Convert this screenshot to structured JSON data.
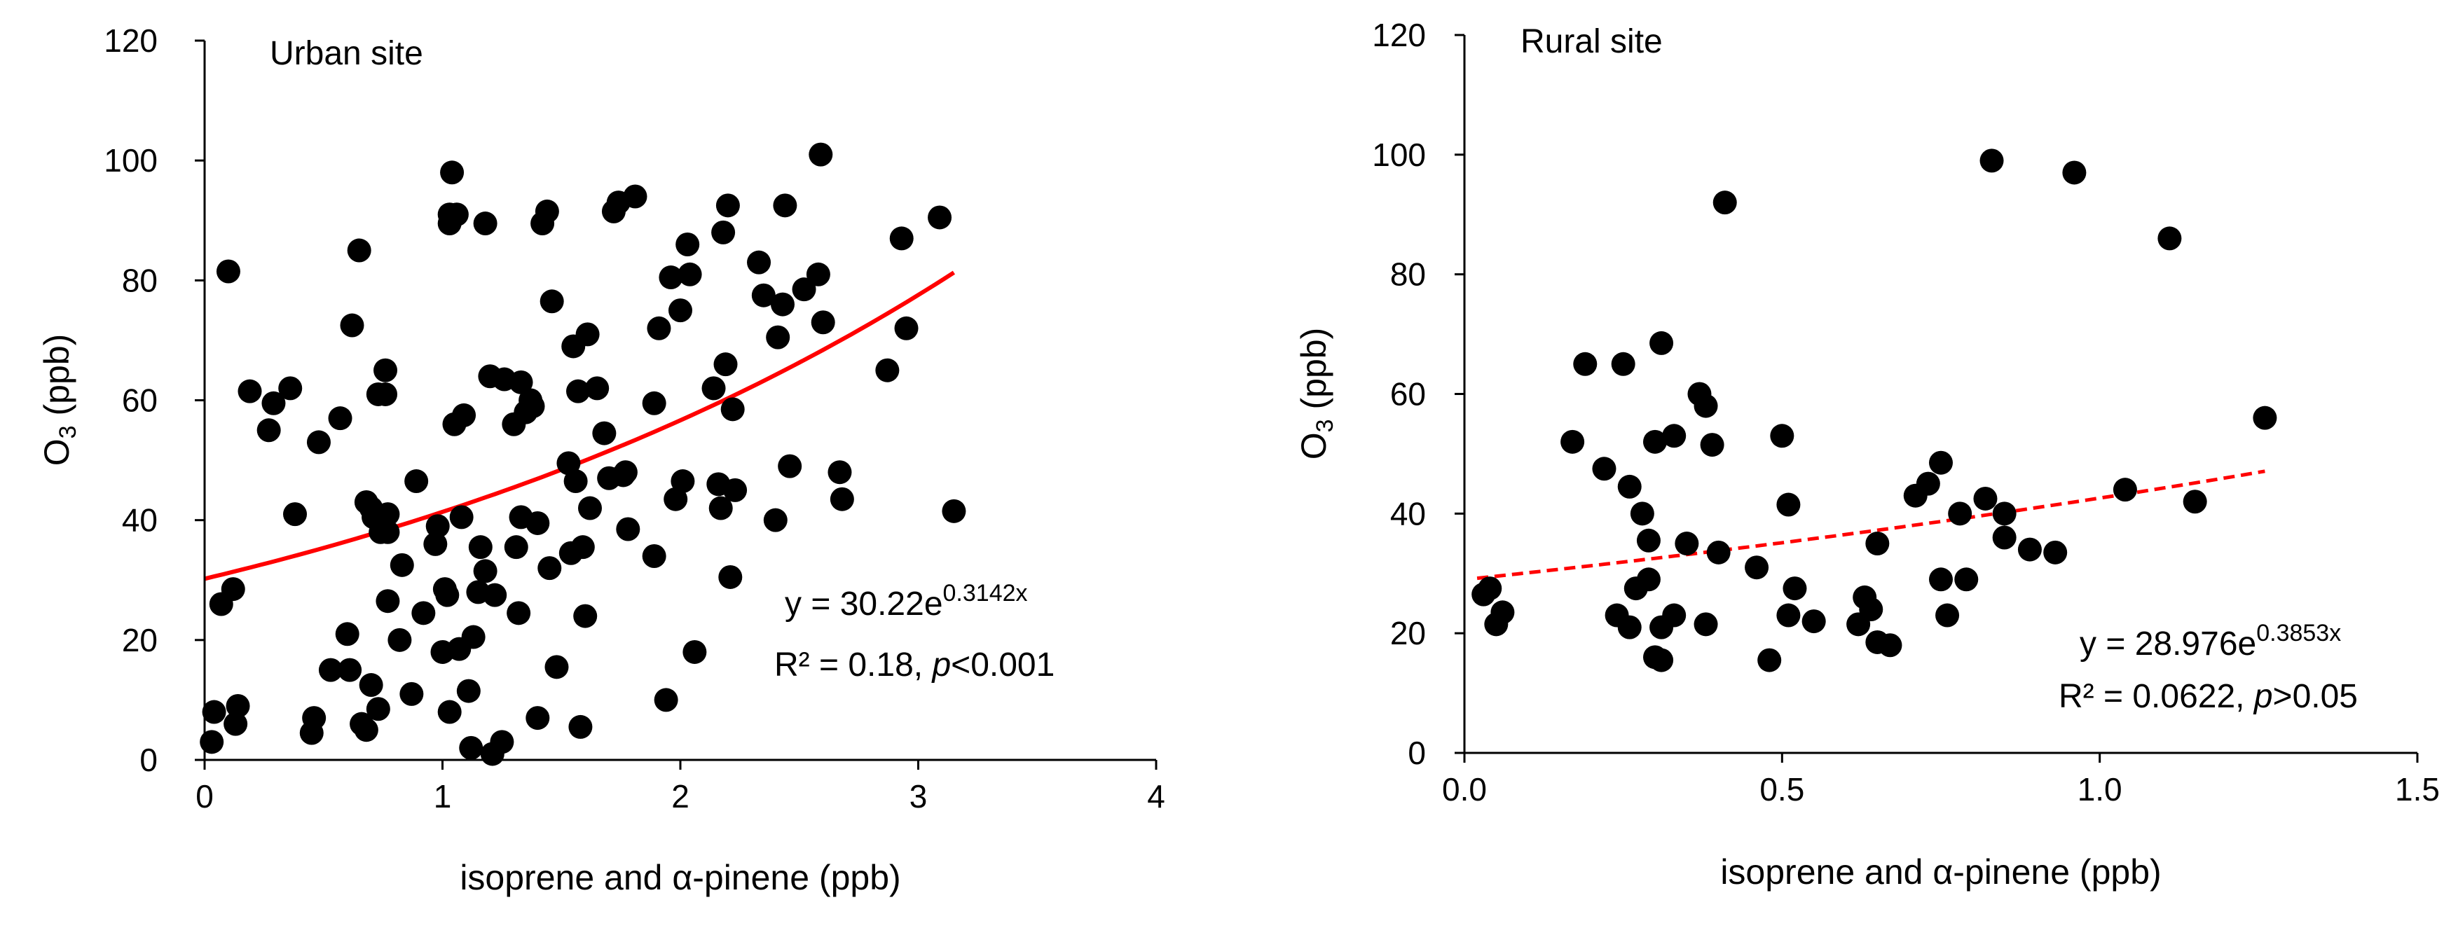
{
  "chart_data": [
    {
      "type": "scatter",
      "title": "Urban site",
      "xlabel": "isoprene and α-pinene (ppb)",
      "ylabel_main": "O",
      "ylabel_sub": "3",
      "ylabel_unit": " (ppb)",
      "xlim": [
        0,
        4
      ],
      "ylim": [
        0,
        120
      ],
      "x_ticks": [
        0,
        1,
        2,
        3,
        4
      ],
      "y_ticks": [
        0,
        20,
        40,
        60,
        80,
        100,
        120
      ],
      "x_tick_labels": [
        "0",
        "1",
        "2",
        "3",
        "4"
      ],
      "y_tick_labels": [
        "0",
        "20",
        "40",
        "60",
        "80",
        "100",
        "120"
      ],
      "marker_color": "#000000",
      "fit_color": "#ff0000",
      "fit": {
        "model": "exponential",
        "a": 30.22,
        "b": 0.3142,
        "x_range": [
          0,
          3.15
        ],
        "style": "solid"
      },
      "equation": {
        "prefix": "y = 30.22e",
        "exponent": "0.3142x",
        "r2": "R² = 0.18, ",
        "p_italic": "p",
        "p_rest": "<0.001"
      },
      "points": [
        [
          0.03,
          3
        ],
        [
          0.04,
          8
        ],
        [
          0.07,
          26
        ],
        [
          0.1,
          81.5
        ],
        [
          0.12,
          28.5
        ],
        [
          0.13,
          6
        ],
        [
          0.14,
          9
        ],
        [
          0.19,
          61.5
        ],
        [
          0.27,
          55
        ],
        [
          0.29,
          59.5
        ],
        [
          0.36,
          62
        ],
        [
          0.38,
          41
        ],
        [
          0.45,
          4.5
        ],
        [
          0.46,
          7
        ],
        [
          0.48,
          53
        ],
        [
          0.53,
          15
        ],
        [
          0.57,
          57
        ],
        [
          0.6,
          21
        ],
        [
          0.61,
          15
        ],
        [
          0.62,
          72.5
        ],
        [
          0.65,
          85
        ],
        [
          0.66,
          6
        ],
        [
          0.68,
          5
        ],
        [
          0.68,
          43
        ],
        [
          0.7,
          12.5
        ],
        [
          0.7,
          42
        ],
        [
          0.71,
          40.5
        ],
        [
          0.73,
          61
        ],
        [
          0.73,
          8.5
        ],
        [
          0.74,
          38
        ],
        [
          0.76,
          61
        ],
        [
          0.76,
          65
        ],
        [
          0.77,
          26.5
        ],
        [
          0.77,
          41
        ],
        [
          0.77,
          38
        ],
        [
          0.82,
          20
        ],
        [
          0.83,
          32.5
        ],
        [
          0.87,
          11
        ],
        [
          0.89,
          46.5
        ],
        [
          0.92,
          24.5
        ],
        [
          0.97,
          36
        ],
        [
          0.98,
          39
        ],
        [
          1.0,
          18
        ],
        [
          1.01,
          28.5
        ],
        [
          1.02,
          27.5
        ],
        [
          1.03,
          8
        ],
        [
          1.03,
          91
        ],
        [
          1.03,
          89.5
        ],
        [
          1.04,
          98
        ],
        [
          1.05,
          56
        ],
        [
          1.06,
          91
        ],
        [
          1.07,
          18.5
        ],
        [
          1.08,
          40.5
        ],
        [
          1.09,
          57.5
        ],
        [
          1.11,
          11.5
        ],
        [
          1.12,
          2
        ],
        [
          1.13,
          20.5
        ],
        [
          1.15,
          28
        ],
        [
          1.16,
          35.5
        ],
        [
          1.18,
          89.5
        ],
        [
          1.18,
          31.5
        ],
        [
          1.2,
          64
        ],
        [
          1.21,
          1
        ],
        [
          1.22,
          27.5
        ],
        [
          1.25,
          3
        ],
        [
          1.26,
          63.5
        ],
        [
          1.3,
          56
        ],
        [
          1.31,
          35.5
        ],
        [
          1.32,
          24.5
        ],
        [
          1.33,
          40.5
        ],
        [
          1.33,
          63
        ],
        [
          1.35,
          58
        ],
        [
          1.37,
          60
        ],
        [
          1.38,
          59
        ],
        [
          1.4,
          39.5
        ],
        [
          1.4,
          7
        ],
        [
          1.42,
          89.5
        ],
        [
          1.44,
          91.5
        ],
        [
          1.45,
          32
        ],
        [
          1.46,
          76.5
        ],
        [
          1.48,
          15.5
        ],
        [
          1.53,
          49.5
        ],
        [
          1.54,
          34.5
        ],
        [
          1.55,
          69
        ],
        [
          1.56,
          46.5
        ],
        [
          1.57,
          61.5
        ],
        [
          1.58,
          5.5
        ],
        [
          1.59,
          35.5
        ],
        [
          1.6,
          24
        ],
        [
          1.61,
          71
        ],
        [
          1.62,
          42
        ],
        [
          1.65,
          62
        ],
        [
          1.68,
          54.5
        ],
        [
          1.7,
          47
        ],
        [
          1.72,
          91.5
        ],
        [
          1.74,
          93
        ],
        [
          1.76,
          47.5
        ],
        [
          1.77,
          48
        ],
        [
          1.78,
          38.5
        ],
        [
          1.81,
          94
        ],
        [
          1.89,
          34
        ],
        [
          1.89,
          59.5
        ],
        [
          1.91,
          72
        ],
        [
          1.94,
          10
        ],
        [
          1.96,
          80.5
        ],
        [
          1.98,
          43.5
        ],
        [
          2.0,
          75
        ],
        [
          2.01,
          46.5
        ],
        [
          2.03,
          86
        ],
        [
          2.04,
          81
        ],
        [
          2.06,
          18
        ],
        [
          2.14,
          62
        ],
        [
          2.16,
          46
        ],
        [
          2.17,
          42
        ],
        [
          2.18,
          88
        ],
        [
          2.19,
          66
        ],
        [
          2.2,
          92.5
        ],
        [
          2.21,
          30.5
        ],
        [
          2.22,
          58.5
        ],
        [
          2.23,
          45
        ],
        [
          2.33,
          83
        ],
        [
          2.35,
          77.5
        ],
        [
          2.4,
          40
        ],
        [
          2.41,
          70.5
        ],
        [
          2.43,
          76
        ],
        [
          2.44,
          92.5
        ],
        [
          2.46,
          49
        ],
        [
          2.52,
          78.5
        ],
        [
          2.58,
          81
        ],
        [
          2.59,
          101
        ],
        [
          2.6,
          73
        ],
        [
          2.67,
          48
        ],
        [
          2.68,
          43.5
        ],
        [
          2.87,
          65
        ],
        [
          2.93,
          87
        ],
        [
          2.95,
          72
        ],
        [
          3.09,
          90.5
        ],
        [
          3.15,
          41.5
        ]
      ]
    },
    {
      "type": "scatter",
      "title": "Rural site",
      "xlabel": "isoprene and α-pinene (ppb)",
      "ylabel_main": "O",
      "ylabel_sub": "3",
      "ylabel_unit": " (ppb)",
      "xlim": [
        0,
        1.5
      ],
      "ylim": [
        0,
        120
      ],
      "x_ticks": [
        0,
        0.5,
        1.0,
        1.5
      ],
      "y_ticks": [
        0,
        20,
        40,
        60,
        80,
        100,
        120
      ],
      "x_tick_labels": [
        "0.0",
        "0.5",
        "1.0",
        "1.5"
      ],
      "y_tick_labels": [
        "0",
        "20",
        "40",
        "60",
        "80",
        "100",
        "120"
      ],
      "marker_color": "#000000",
      "fit_color": "#ff0000",
      "fit": {
        "model": "exponential",
        "a": 28.976,
        "b": 0.3853,
        "x_range": [
          0.02,
          1.26
        ],
        "style": "dashed"
      },
      "equation": {
        "prefix": "y = 28.976e",
        "exponent": "0.3853x",
        "r2": "R² = 0.0622, ",
        "p_italic": "p",
        "p_rest": ">0.05"
      },
      "points": [
        [
          0.03,
          26.5
        ],
        [
          0.04,
          27.5
        ],
        [
          0.05,
          21.5
        ],
        [
          0.06,
          23.5
        ],
        [
          0.17,
          52
        ],
        [
          0.19,
          65
        ],
        [
          0.22,
          47.5
        ],
        [
          0.24,
          23
        ],
        [
          0.25,
          65
        ],
        [
          0.26,
          21
        ],
        [
          0.26,
          44.5
        ],
        [
          0.27,
          27.5
        ],
        [
          0.28,
          40
        ],
        [
          0.29,
          29
        ],
        [
          0.29,
          35.5
        ],
        [
          0.3,
          52
        ],
        [
          0.3,
          16
        ],
        [
          0.31,
          68.5
        ],
        [
          0.31,
          15.5
        ],
        [
          0.31,
          21
        ],
        [
          0.33,
          53
        ],
        [
          0.33,
          23
        ],
        [
          0.35,
          35
        ],
        [
          0.37,
          60
        ],
        [
          0.38,
          58
        ],
        [
          0.38,
          21.5
        ],
        [
          0.39,
          51.5
        ],
        [
          0.4,
          33.5
        ],
        [
          0.41,
          92
        ],
        [
          0.46,
          31
        ],
        [
          0.48,
          15.5
        ],
        [
          0.5,
          53
        ],
        [
          0.51,
          41.5
        ],
        [
          0.51,
          23
        ],
        [
          0.52,
          27.5
        ],
        [
          0.55,
          22
        ],
        [
          0.62,
          21.5
        ],
        [
          0.63,
          26
        ],
        [
          0.64,
          24
        ],
        [
          0.65,
          35
        ],
        [
          0.65,
          18.5
        ],
        [
          0.67,
          18
        ],
        [
          0.71,
          43
        ],
        [
          0.73,
          45
        ],
        [
          0.75,
          29
        ],
        [
          0.75,
          48.5
        ],
        [
          0.76,
          23
        ],
        [
          0.78,
          40
        ],
        [
          0.79,
          29
        ],
        [
          0.82,
          42.5
        ],
        [
          0.83,
          99
        ],
        [
          0.85,
          40
        ],
        [
          0.85,
          36
        ],
        [
          0.89,
          34
        ],
        [
          0.93,
          33.5
        ],
        [
          0.96,
          97
        ],
        [
          1.04,
          44
        ],
        [
          1.11,
          86
        ],
        [
          1.15,
          42
        ],
        [
          1.26,
          56
        ]
      ]
    }
  ]
}
